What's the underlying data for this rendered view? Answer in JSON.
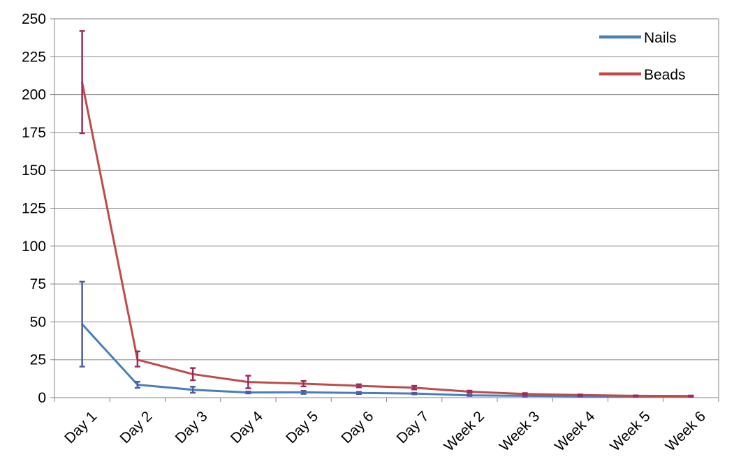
{
  "chart_data": {
    "type": "line",
    "categories": [
      "Day 1",
      "Day 2",
      "Day 3",
      "Day 4",
      "Day 5",
      "Day 6",
      "Day 7",
      "Week 2",
      "Week 3",
      "Week 4",
      "Week 5",
      "Week 6"
    ],
    "ylim": [
      0,
      250
    ],
    "yticks": [
      0,
      25,
      50,
      75,
      100,
      125,
      150,
      175,
      200,
      225,
      250
    ],
    "grid": true,
    "legend_position": "top-right",
    "series": [
      {
        "name": "Nails",
        "color": "#4a7ebb",
        "error_color": "#4f5d9a",
        "values": [
          48.5,
          8.5,
          5.2,
          3.4,
          3.5,
          3.1,
          2.7,
          1.5,
          1.2,
          0.9,
          0.7,
          0.6
        ],
        "error_upper": [
          76.5,
          10.5,
          7.2,
          4.0,
          4.5,
          3.8,
          3.2,
          1.9,
          1.6,
          1.1,
          0.9,
          0.8
        ],
        "error_lower": [
          20.5,
          6.5,
          3.2,
          2.8,
          2.5,
          2.4,
          2.2,
          1.1,
          0.8,
          0.7,
          0.5,
          0.4
        ]
      },
      {
        "name": "Beads",
        "color": "#be4b48",
        "error_color": "#9b2b5c",
        "values": [
          208,
          25,
          15.5,
          10.3,
          9.2,
          7.8,
          6.6,
          3.9,
          2.4,
          1.7,
          1.2,
          1.1
        ],
        "error_upper": [
          242,
          30.5,
          19.5,
          14.5,
          11,
          8.8,
          7.8,
          4.6,
          3,
          2.1,
          1.5,
          1.4
        ],
        "error_lower": [
          174.5,
          20.5,
          11.5,
          6.2,
          7.4,
          6.8,
          5.4,
          3.2,
          1.8,
          1.3,
          0.9,
          0.8
        ]
      }
    ]
  }
}
